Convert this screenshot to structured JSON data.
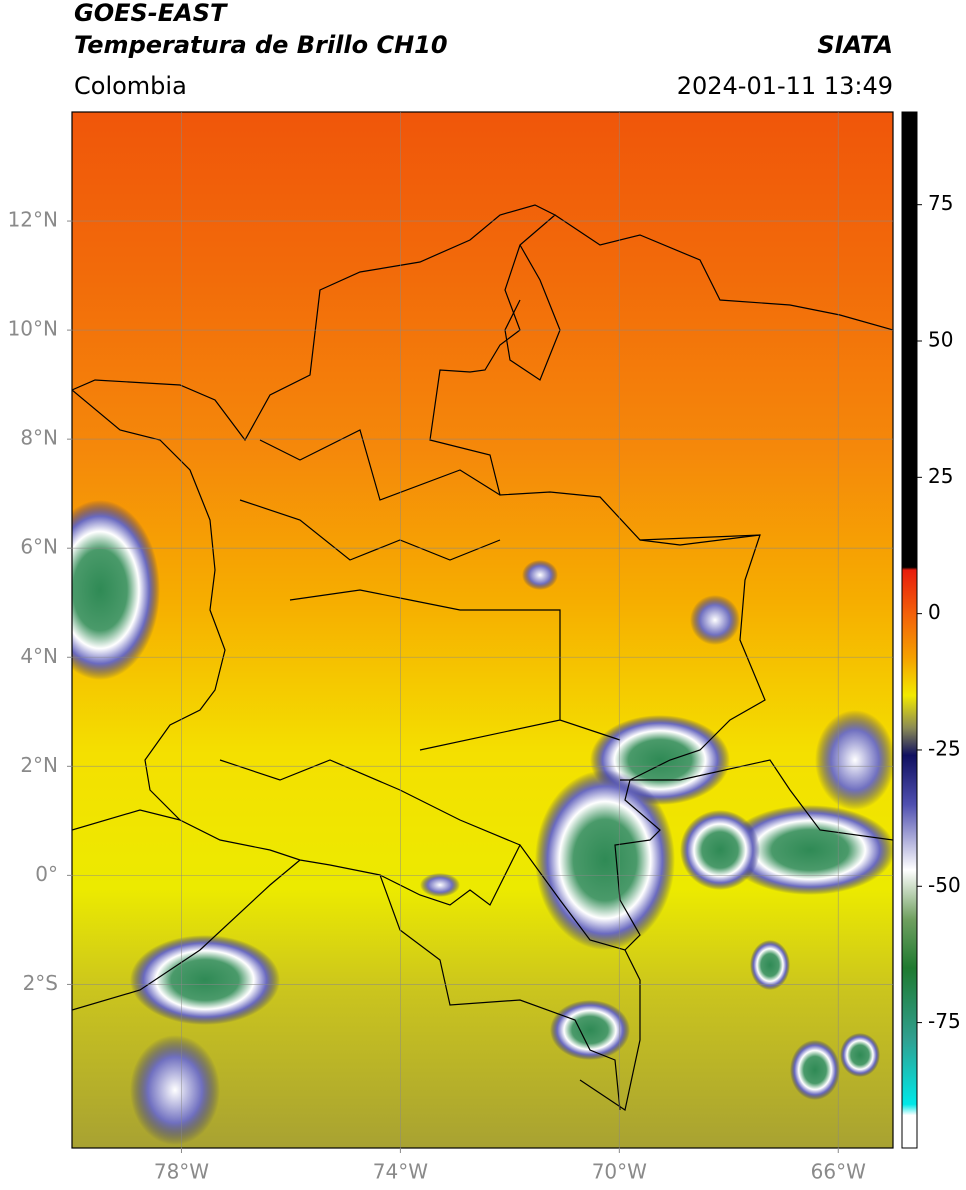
{
  "header": {
    "title": "GOES-EAST",
    "subtitle": "Temperatura de Brillo CH10",
    "region": "Colombia",
    "source": "SIATA",
    "datetime": "2024-01-11 13:49"
  },
  "map": {
    "xlim": [
      -80,
      -65
    ],
    "ylim": [
      -5,
      14
    ],
    "grid": true,
    "xticks": [
      {
        "value": -78,
        "label": "78°W"
      },
      {
        "value": -74,
        "label": "74°W"
      },
      {
        "value": -70,
        "label": "70°W"
      },
      {
        "value": -66,
        "label": "66°W"
      }
    ],
    "yticks": [
      {
        "value": 12,
        "label": "12°N"
      },
      {
        "value": 10,
        "label": "10°N"
      },
      {
        "value": 8,
        "label": "8°N"
      },
      {
        "value": 6,
        "label": "6°N"
      },
      {
        "value": 4,
        "label": "4°N"
      },
      {
        "value": 2,
        "label": "2°N"
      },
      {
        "value": 0,
        "label": "0°"
      },
      {
        "value": -2,
        "label": "2°S"
      }
    ]
  },
  "colorbar": {
    "lim": [
      -98,
      92
    ],
    "ticks": [
      75,
      50,
      25,
      0,
      -25,
      -50,
      -75
    ],
    "colors": [
      {
        "value": 92,
        "color": "#000000"
      },
      {
        "value": 8.5,
        "color": "#000000"
      },
      {
        "value": 8,
        "color": "#e81c0c"
      },
      {
        "value": 0,
        "color": "#f3600a"
      },
      {
        "value": -8,
        "color": "#f5a000"
      },
      {
        "value": -15,
        "color": "#f2ea00"
      },
      {
        "value": -21,
        "color": "#8a8a55"
      },
      {
        "value": -26,
        "color": "#101060"
      },
      {
        "value": -35,
        "color": "#5050b0"
      },
      {
        "value": -47,
        "color": "#ffffff"
      },
      {
        "value": -56,
        "color": "#70a060"
      },
      {
        "value": -65,
        "color": "#1f7a30"
      },
      {
        "value": -78,
        "color": "#30a090"
      },
      {
        "value": -90,
        "color": "#00e8e8"
      },
      {
        "value": -92,
        "color": "#ffffff"
      },
      {
        "value": -98,
        "color": "#ffffff"
      }
    ]
  }
}
